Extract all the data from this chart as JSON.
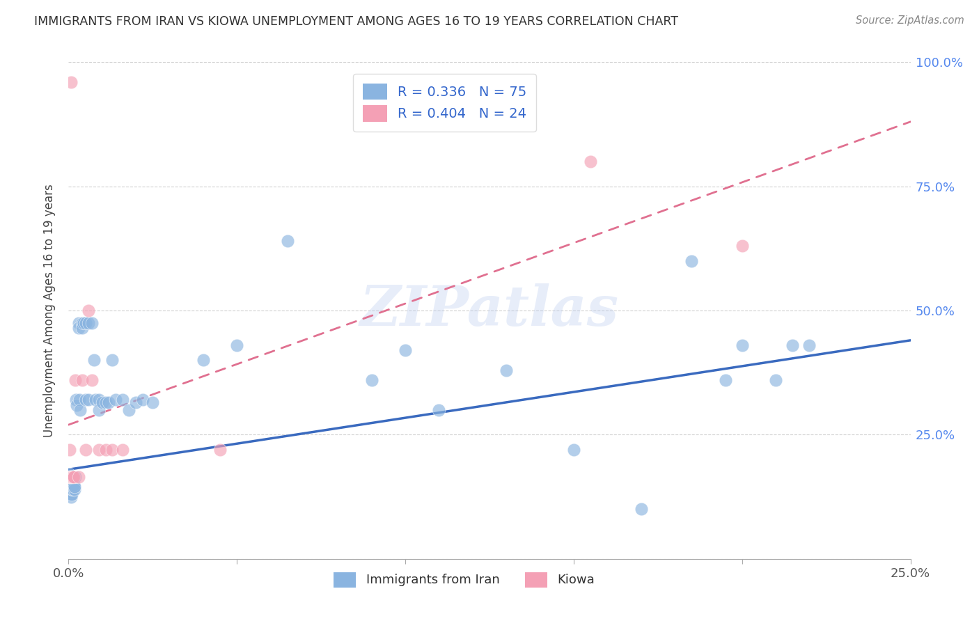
{
  "title": "IMMIGRANTS FROM IRAN VS KIOWA UNEMPLOYMENT AMONG AGES 16 TO 19 YEARS CORRELATION CHART",
  "source": "Source: ZipAtlas.com",
  "ylabel": "Unemployment Among Ages 16 to 19 years",
  "xlim": [
    0.0,
    0.25
  ],
  "ylim": [
    0.0,
    1.0
  ],
  "x_ticks": [
    0.0,
    0.05,
    0.1,
    0.15,
    0.2,
    0.25
  ],
  "x_tick_labels": [
    "0.0%",
    "",
    "",
    "",
    "",
    "25.0%"
  ],
  "y_ticks": [
    0.0,
    0.25,
    0.5,
    0.75,
    1.0
  ],
  "y_tick_labels": [
    "",
    "25.0%",
    "50.0%",
    "75.0%",
    "100.0%"
  ],
  "iran_R": 0.336,
  "iran_N": 75,
  "kiowa_R": 0.404,
  "kiowa_N": 24,
  "iran_color": "#8ab4e0",
  "kiowa_color": "#f4a0b5",
  "iran_line_color": "#3a6abf",
  "kiowa_line_color": "#e07090",
  "watermark": "ZIPatlas",
  "iran_x": [
    0.0002,
    0.0002,
    0.0003,
    0.0003,
    0.0003,
    0.0004,
    0.0004,
    0.0004,
    0.0005,
    0.0005,
    0.0006,
    0.0006,
    0.0007,
    0.0007,
    0.0008,
    0.0008,
    0.0008,
    0.0009,
    0.0009,
    0.001,
    0.001,
    0.0011,
    0.0011,
    0.0012,
    0.0012,
    0.0013,
    0.0014,
    0.0015,
    0.0016,
    0.0017,
    0.0018,
    0.002,
    0.0022,
    0.0024,
    0.003,
    0.003,
    0.0032,
    0.0034,
    0.004,
    0.004,
    0.0045,
    0.005,
    0.005,
    0.006,
    0.006,
    0.007,
    0.0075,
    0.008,
    0.009,
    0.009,
    0.01,
    0.011,
    0.012,
    0.013,
    0.014,
    0.016,
    0.018,
    0.02,
    0.022,
    0.025,
    0.04,
    0.05,
    0.065,
    0.09,
    0.1,
    0.11,
    0.13,
    0.15,
    0.17,
    0.185,
    0.195,
    0.2,
    0.21,
    0.215,
    0.22
  ],
  "iran_y": [
    0.17,
    0.16,
    0.155,
    0.15,
    0.14,
    0.155,
    0.15,
    0.13,
    0.14,
    0.13,
    0.145,
    0.135,
    0.14,
    0.13,
    0.145,
    0.135,
    0.125,
    0.14,
    0.13,
    0.155,
    0.145,
    0.15,
    0.14,
    0.155,
    0.145,
    0.145,
    0.14,
    0.145,
    0.15,
    0.14,
    0.145,
    0.165,
    0.32,
    0.31,
    0.475,
    0.465,
    0.32,
    0.3,
    0.475,
    0.465,
    0.475,
    0.475,
    0.32,
    0.475,
    0.32,
    0.475,
    0.4,
    0.32,
    0.32,
    0.3,
    0.315,
    0.315,
    0.315,
    0.4,
    0.32,
    0.32,
    0.3,
    0.315,
    0.32,
    0.315,
    0.4,
    0.43,
    0.64,
    0.36,
    0.42,
    0.3,
    0.38,
    0.22,
    0.1,
    0.6,
    0.36,
    0.43,
    0.36,
    0.43,
    0.43
  ],
  "kiowa_x": [
    0.0002,
    0.0003,
    0.0004,
    0.0005,
    0.0006,
    0.0007,
    0.0008,
    0.001,
    0.0012,
    0.0014,
    0.0016,
    0.002,
    0.003,
    0.004,
    0.005,
    0.006,
    0.007,
    0.009,
    0.011,
    0.013,
    0.016,
    0.045,
    0.155,
    0.2
  ],
  "kiowa_y": [
    0.165,
    0.22,
    0.165,
    0.165,
    0.165,
    0.96,
    0.165,
    0.165,
    0.165,
    0.165,
    0.165,
    0.36,
    0.165,
    0.36,
    0.22,
    0.5,
    0.36,
    0.22,
    0.22,
    0.22,
    0.22,
    0.22,
    0.8,
    0.63
  ],
  "iran_line_x0": 0.0,
  "iran_line_y0": 0.18,
  "iran_line_x1": 0.25,
  "iran_line_y1": 0.44,
  "kiowa_line_x0": 0.0,
  "kiowa_line_y0": 0.27,
  "kiowa_line_x1": 0.25,
  "kiowa_line_y1": 0.88
}
